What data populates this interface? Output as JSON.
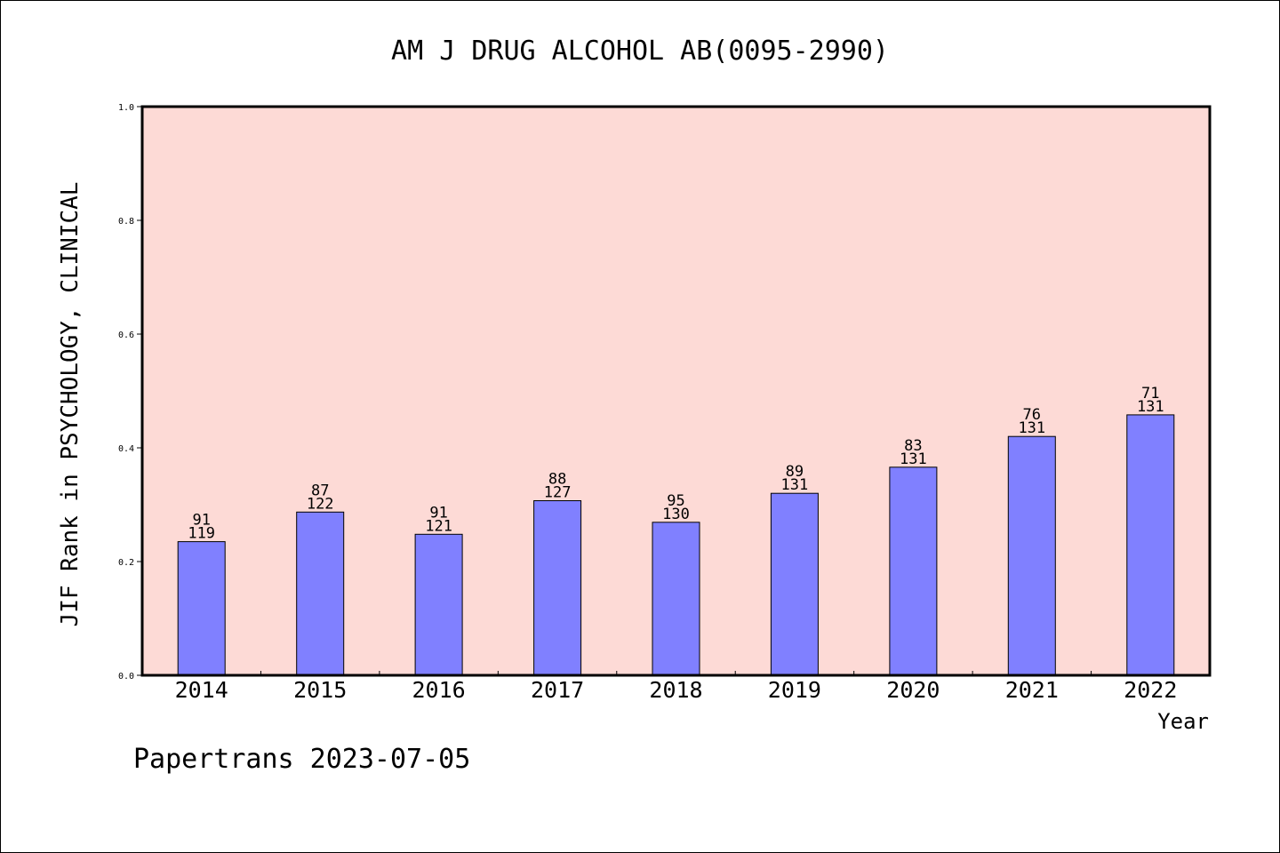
{
  "chart_data": {
    "type": "bar",
    "title": "AM J DRUG ALCOHOL AB(0095-2990)",
    "xlabel": "Year",
    "ylabel": "JIF Rank in PSYCHOLOGY, CLINICAL",
    "ylim": [
      0.0,
      1.0
    ],
    "yticks": [
      "0.0",
      "0.2",
      "0.4",
      "0.6",
      "0.8",
      "1.0"
    ],
    "categories": [
      "2014",
      "2015",
      "2016",
      "2017",
      "2018",
      "2019",
      "2020",
      "2021",
      "2022"
    ],
    "values": [
      0.235,
      0.287,
      0.248,
      0.307,
      0.269,
      0.32,
      0.366,
      0.42,
      0.458
    ],
    "rank": [
      "91",
      "87",
      "91",
      "88",
      "95",
      "89",
      "83",
      "76",
      "71"
    ],
    "total": [
      "119",
      "122",
      "121",
      "127",
      "130",
      "131",
      "131",
      "131",
      "131"
    ],
    "grid": false,
    "colors": {
      "bar": "#8080ff",
      "plot_bg": "#fddad6",
      "axis": "#000000"
    }
  },
  "footer": {
    "credit": "Papertrans 2023-07-05"
  }
}
